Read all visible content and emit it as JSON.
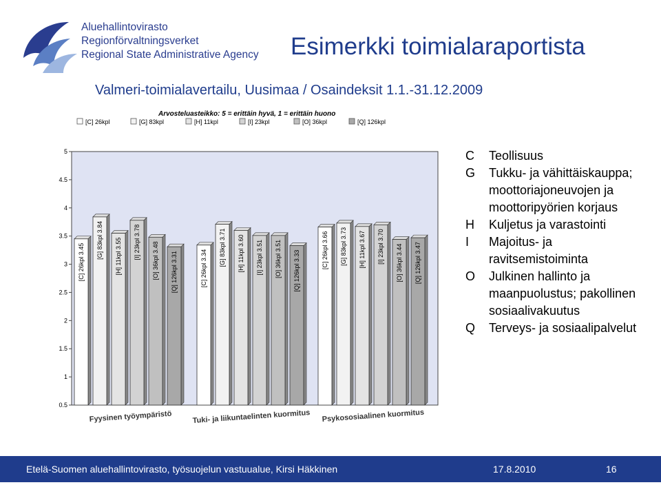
{
  "logo": {
    "line1": "Aluehallintovirasto",
    "line2": "Regionförvaltningsverket",
    "line3": "Regional State Administrative Agency"
  },
  "slide": {
    "title": "Esimerkki toimialaraportista",
    "subtitle": "Valmeri-toimialavertailu, Uusimaa / Osaindeksit 1.1.-31.12.2009"
  },
  "chart_data": {
    "type": "bar",
    "scale_note": "Arvosteluasteikko: 5 = erittäin hyvä, 1 = erittäin huono",
    "legend": [
      "[C] 26kpl",
      "[G] 83kpl",
      "[H] 11kpl",
      "[I] 23kpl",
      "[O] 36kpl",
      "[Q] 126kpl"
    ],
    "categories": [
      "Fyysinen työympäristö",
      "Tuki- ja liikuntaelinten kuormitus",
      "Psykososiaalinen kuormitus"
    ],
    "ylim": [
      0.5,
      5
    ],
    "yticks": [
      "5",
      "4.5",
      "4",
      "3.5",
      "3",
      "2.5",
      "2",
      "1.5",
      "1",
      "0.5"
    ],
    "grid": false,
    "series": [
      {
        "name": "[C] 26kpl",
        "color": "#ffffff",
        "values": [
          3.45,
          3.34,
          3.66
        ],
        "labels": [
          "[C] 26kpl  3.45",
          "[C] 26kpl  3.34",
          "[C] 26kpl  3.66"
        ]
      },
      {
        "name": "[G] 83kpl",
        "color": "#f2f2f2",
        "values": [
          3.84,
          3.71,
          3.73
        ],
        "labels": [
          "[G]  83kpl  3.84",
          "[G]  83kpl  3.71",
          "[G]  83kpl  3.73"
        ]
      },
      {
        "name": "[H] 11kpl",
        "color": "#e4e4e4",
        "values": [
          3.55,
          3.6,
          3.67
        ],
        "labels": [
          "[H]  11kpl  3.55",
          "[H]  11kpl  3.60",
          "[H]  11kpl  3.67"
        ]
      },
      {
        "name": "[I] 23kpl",
        "color": "#d3d3d3",
        "values": [
          3.78,
          3.51,
          3.7
        ],
        "labels": [
          "[I]  23kpl  3.78",
          "[I]  23kpl  3.51",
          "[I]  23kpl  3.70"
        ]
      },
      {
        "name": "[O] 36kpl",
        "color": "#c0c0c0",
        "values": [
          3.48,
          3.51,
          3.44
        ],
        "labels": [
          "[O]  36kpl  3.48",
          "[O]  36kpl  3.51",
          "[O]  36kpl  3.44"
        ]
      },
      {
        "name": "[Q] 126kpl",
        "color": "#a8a8a8",
        "values": [
          3.31,
          3.33,
          3.47
        ],
        "labels": [
          "[Q]  126kpl  3.31",
          "[Q]  126kpl  3.33",
          "[Q]  126kpl  3.47"
        ]
      }
    ]
  },
  "branch_legend": [
    {
      "code": "C",
      "text": "Teollisuus"
    },
    {
      "code": "G",
      "text": "Tukku- ja vähittäiskauppa; moottoriajoneuvojen ja moottoripyörien korjaus"
    },
    {
      "code": "H",
      "text": "Kuljetus ja varastointi"
    },
    {
      "code": "I",
      "text": "Majoitus- ja ravitsemistoiminta"
    },
    {
      "code": "O",
      "text": "Julkinen hallinto ja maanpuolustus; pakollinen sosiaalivakuutus"
    },
    {
      "code": "Q",
      "text": "Terveys- ja sosiaalipalvelut"
    }
  ],
  "footer": {
    "org": "Etelä-Suomen aluehallintovirasto, työsuojelun vastuualue, Kirsi Häkkinen",
    "date": "17.8.2010",
    "page": "16"
  }
}
